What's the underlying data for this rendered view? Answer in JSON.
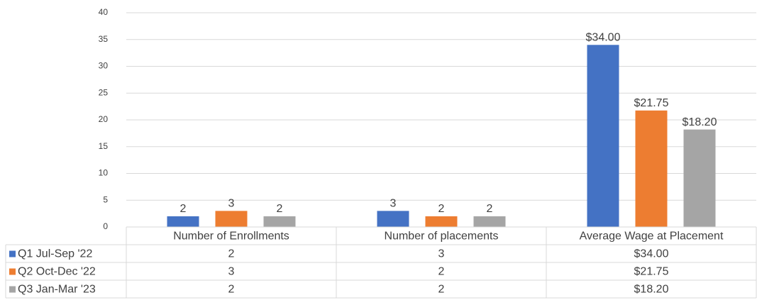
{
  "chart_data": {
    "type": "bar",
    "categories": [
      "Number of Enrollments",
      "Number of placements",
      "Average Wage at Placement"
    ],
    "series": [
      {
        "name": "Q1 Jul-Sep '22",
        "color": "#4472c4",
        "values": [
          2,
          3,
          34
        ],
        "value_labels": [
          "2",
          "3",
          "$34.00"
        ]
      },
      {
        "name": "Q2 Oct-Dec '22",
        "color": "#ed7d31",
        "values": [
          3,
          2,
          21.75
        ],
        "value_labels": [
          "3",
          "2",
          "$21.75"
        ]
      },
      {
        "name": "Q3 Jan-Mar '23",
        "color": "#a5a5a5",
        "values": [
          2,
          2,
          18.2
        ],
        "value_labels": [
          "2",
          "2",
          "$18.20"
        ]
      }
    ],
    "ylim": [
      0,
      40
    ],
    "yticks": [
      0,
      5,
      10,
      15,
      20,
      25,
      30,
      35,
      40
    ],
    "grid": true,
    "data_table": true
  }
}
